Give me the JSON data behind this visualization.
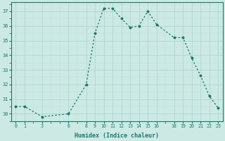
{
  "x": [
    0,
    1,
    3,
    6,
    8,
    9,
    10,
    11,
    12,
    13,
    14,
    15,
    16,
    18,
    19,
    20,
    21,
    22,
    23
  ],
  "y": [
    30.5,
    30.5,
    29.8,
    30.0,
    32.0,
    35.5,
    37.2,
    37.2,
    36.5,
    35.9,
    36.0,
    37.0,
    36.1,
    35.2,
    35.2,
    33.8,
    32.6,
    31.2,
    30.4
  ],
  "xlabel": "Humidex (Indice chaleur)",
  "xticks": [
    0,
    1,
    3,
    6,
    8,
    9,
    10,
    11,
    12,
    13,
    14,
    15,
    16,
    18,
    19,
    20,
    21,
    22,
    23
  ],
  "yticks": [
    30,
    31,
    32,
    33,
    34,
    35,
    36,
    37
  ],
  "ylim": [
    29.5,
    37.6
  ],
  "xlim": [
    -0.5,
    23.5
  ],
  "line_color": "#1a7a6e",
  "bg_color": "#cce9e4",
  "grid_major_color": "#aad4cc",
  "grid_minor_color": "#bde0db"
}
